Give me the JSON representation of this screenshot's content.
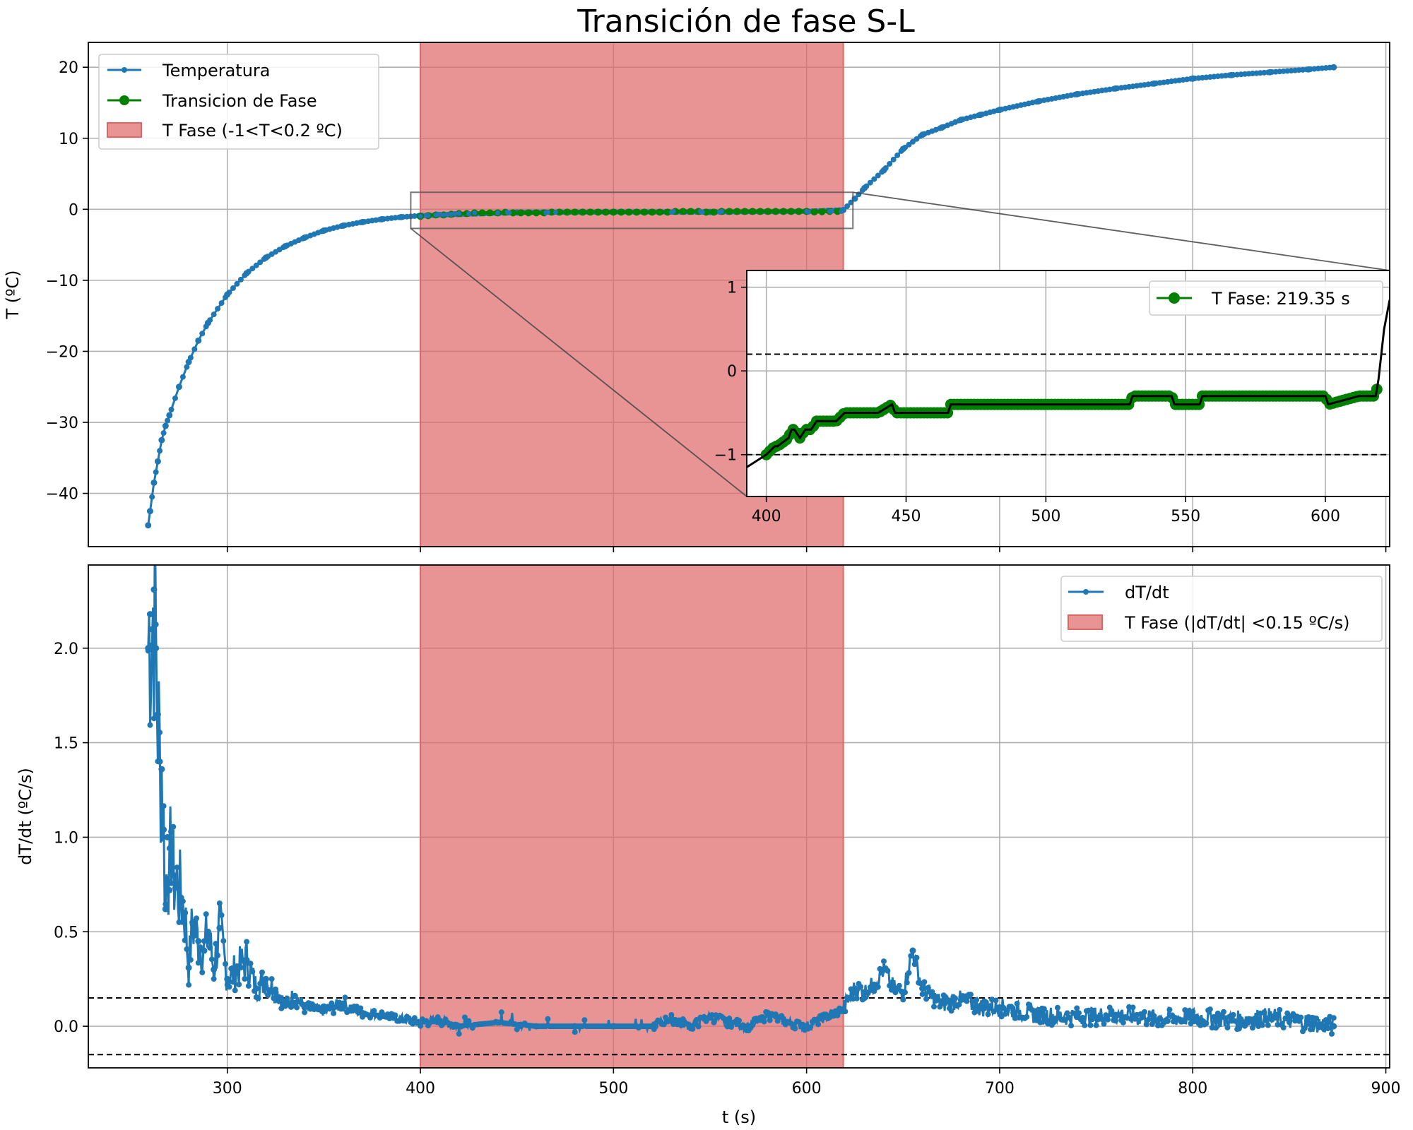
{
  "title": "Transición de fase S-L",
  "colors": {
    "series": "#1f77b4",
    "phase": "#008000",
    "band": "#e06666",
    "inset_line": "#000000"
  },
  "chart_data": [
    {
      "type": "line",
      "panel": "top",
      "ylabel": "T (ºC)",
      "xlim": [
        228,
        902
      ],
      "ylim": [
        -47.5,
        23.5
      ],
      "xticks": [
        300,
        400,
        500,
        600,
        700,
        800,
        900
      ],
      "yticks": [
        -40,
        -30,
        -20,
        -10,
        0,
        10,
        20
      ],
      "ytick_labels": [
        "−40",
        "−30",
        "−20",
        "−10",
        "0",
        "10",
        "20"
      ],
      "legend": {
        "position": "upper-left",
        "entries": [
          "Temperatura",
          "Transicion de Fase",
          "T Fase (-1<T<0.2 ºC)"
        ]
      },
      "shaded_span": {
        "x": [
          400,
          619
        ],
        "label": "T Fase (-1<T<0.2 ºC)"
      },
      "series": [
        {
          "name": "Temperatura",
          "x": [
            259,
            260,
            262,
            264,
            266,
            268,
            270,
            275,
            280,
            285,
            290,
            300,
            310,
            320,
            330,
            340,
            350,
            360,
            370,
            380,
            390,
            400,
            450,
            500,
            550,
            600,
            619,
            625,
            630,
            640,
            650,
            660,
            670,
            680,
            690,
            700,
            720,
            740,
            760,
            780,
            800,
            820,
            840,
            860,
            873
          ],
          "y": [
            -44.5,
            -42.5,
            -38.5,
            -35.5,
            -32.5,
            -30.5,
            -29.0,
            -25.0,
            -21.5,
            -18.5,
            -16.0,
            -12.0,
            -9.0,
            -6.8,
            -5.2,
            -4.0,
            -3.0,
            -2.3,
            -1.8,
            -1.4,
            -1.1,
            -0.9,
            -0.45,
            -0.38,
            -0.38,
            -0.3,
            -0.1,
            1.5,
            3.0,
            5.5,
            8.5,
            10.5,
            11.5,
            12.6,
            13.3,
            14.0,
            15.2,
            16.2,
            17.0,
            17.7,
            18.4,
            18.9,
            19.3,
            19.7,
            20.0
          ]
        },
        {
          "name": "Transicion de Fase",
          "x": [
            400,
            403,
            404,
            408,
            409,
            410,
            412,
            414,
            416,
            418,
            420,
            425,
            428,
            440,
            445,
            446,
            465,
            466,
            470,
            530,
            531,
            545,
            546,
            555,
            556,
            600,
            601,
            612,
            613,
            618,
            619
          ],
          "y": [
            -1.0,
            -0.9,
            -0.9,
            -0.8,
            -0.7,
            -0.7,
            -0.8,
            -0.7,
            -0.7,
            -0.6,
            -0.6,
            -0.6,
            -0.5,
            -0.5,
            -0.4,
            -0.5,
            -0.5,
            -0.4,
            -0.4,
            -0.4,
            -0.3,
            -0.3,
            -0.4,
            -0.4,
            -0.3,
            -0.3,
            -0.4,
            -0.3,
            -0.3,
            -0.3,
            -0.1
          ]
        }
      ],
      "inset": {
        "xlim": [
          393,
          623
        ],
        "ylim": [
          -1.5,
          1.2
        ],
        "xticks": [
          400,
          450,
          500,
          550,
          600
        ],
        "yticks": [
          -1,
          0,
          1
        ],
        "ytick_labels": [
          "−1",
          "0",
          "1"
        ],
        "hlines": [
          -1.0,
          0.2
        ],
        "legend": {
          "position": "upper-right",
          "entries": [
            "T Fase: 219.35 s"
          ]
        },
        "zoom_box": {
          "x": [
            395,
            624
          ],
          "y": [
            -1.5,
            1.2
          ]
        }
      }
    },
    {
      "type": "line",
      "panel": "bottom",
      "xlabel": "t (s)",
      "ylabel": "dT/dt (ºC/s)",
      "xlim": [
        228,
        902
      ],
      "ylim": [
        -0.22,
        2.44
      ],
      "xticks": [
        300,
        400,
        500,
        600,
        700,
        800,
        900
      ],
      "xtick_labels": [
        "300",
        "400",
        "500",
        "600",
        "700",
        "800",
        "900"
      ],
      "yticks": [
        0.0,
        0.5,
        1.0,
        1.5,
        2.0
      ],
      "ytick_labels": [
        "0.0",
        "0.5",
        "1.0",
        "1.5",
        "2.0"
      ],
      "hlines": [
        0.15,
        -0.15
      ],
      "legend": {
        "position": "upper-right",
        "entries": [
          "dT/dt",
          "T Fase (|dT/dt| <0.15 ºC/s)"
        ]
      },
      "shaded_span": {
        "x": [
          400,
          619
        ],
        "label": "T Fase (|dT/dt| <0.15 ºC/s)"
      },
      "series": [
        {
          "name": "dT/dt",
          "x": [
            259,
            260,
            261,
            262,
            263,
            264,
            265,
            266,
            267,
            268,
            269,
            270,
            271,
            272,
            274,
            276,
            278,
            280,
            282,
            285,
            288,
            290,
            293,
            296,
            300,
            305,
            310,
            315,
            320,
            325,
            330,
            335,
            340,
            350,
            360,
            370,
            380,
            390,
            400,
            410,
            420,
            440,
            460,
            480,
            500,
            520,
            530,
            540,
            550,
            560,
            570,
            580,
            590,
            600,
            610,
            619,
            625,
            630,
            635,
            640,
            645,
            650,
            655,
            660,
            665,
            670,
            680,
            690,
            700,
            720,
            740,
            760,
            780,
            800,
            820,
            840,
            850,
            860,
            873
          ],
          "y": [
            2.0,
            2.18,
            2.1,
            2.31,
            2.0,
            1.65,
            1.4,
            1.36,
            1.04,
            0.62,
            1.0,
            0.72,
            1.03,
            0.8,
            0.75,
            0.68,
            0.6,
            0.31,
            0.55,
            0.45,
            0.4,
            0.5,
            0.3,
            0.52,
            0.25,
            0.3,
            0.35,
            0.2,
            0.25,
            0.18,
            0.12,
            0.16,
            0.1,
            0.08,
            0.12,
            0.07,
            0.06,
            0.04,
            0.02,
            0.03,
            0.0,
            0.02,
            0.0,
            0.0,
            0.0,
            0.0,
            0.04,
            0.0,
            0.05,
            0.02,
            0.0,
            0.06,
            0.02,
            0.0,
            0.05,
            0.09,
            0.2,
            0.18,
            0.22,
            0.3,
            0.2,
            0.18,
            0.4,
            0.2,
            0.16,
            0.12,
            0.14,
            0.1,
            0.1,
            0.06,
            0.05,
            0.06,
            0.04,
            0.05,
            0.03,
            0.05,
            0.03,
            0.02,
            0.0
          ]
        }
      ]
    }
  ]
}
